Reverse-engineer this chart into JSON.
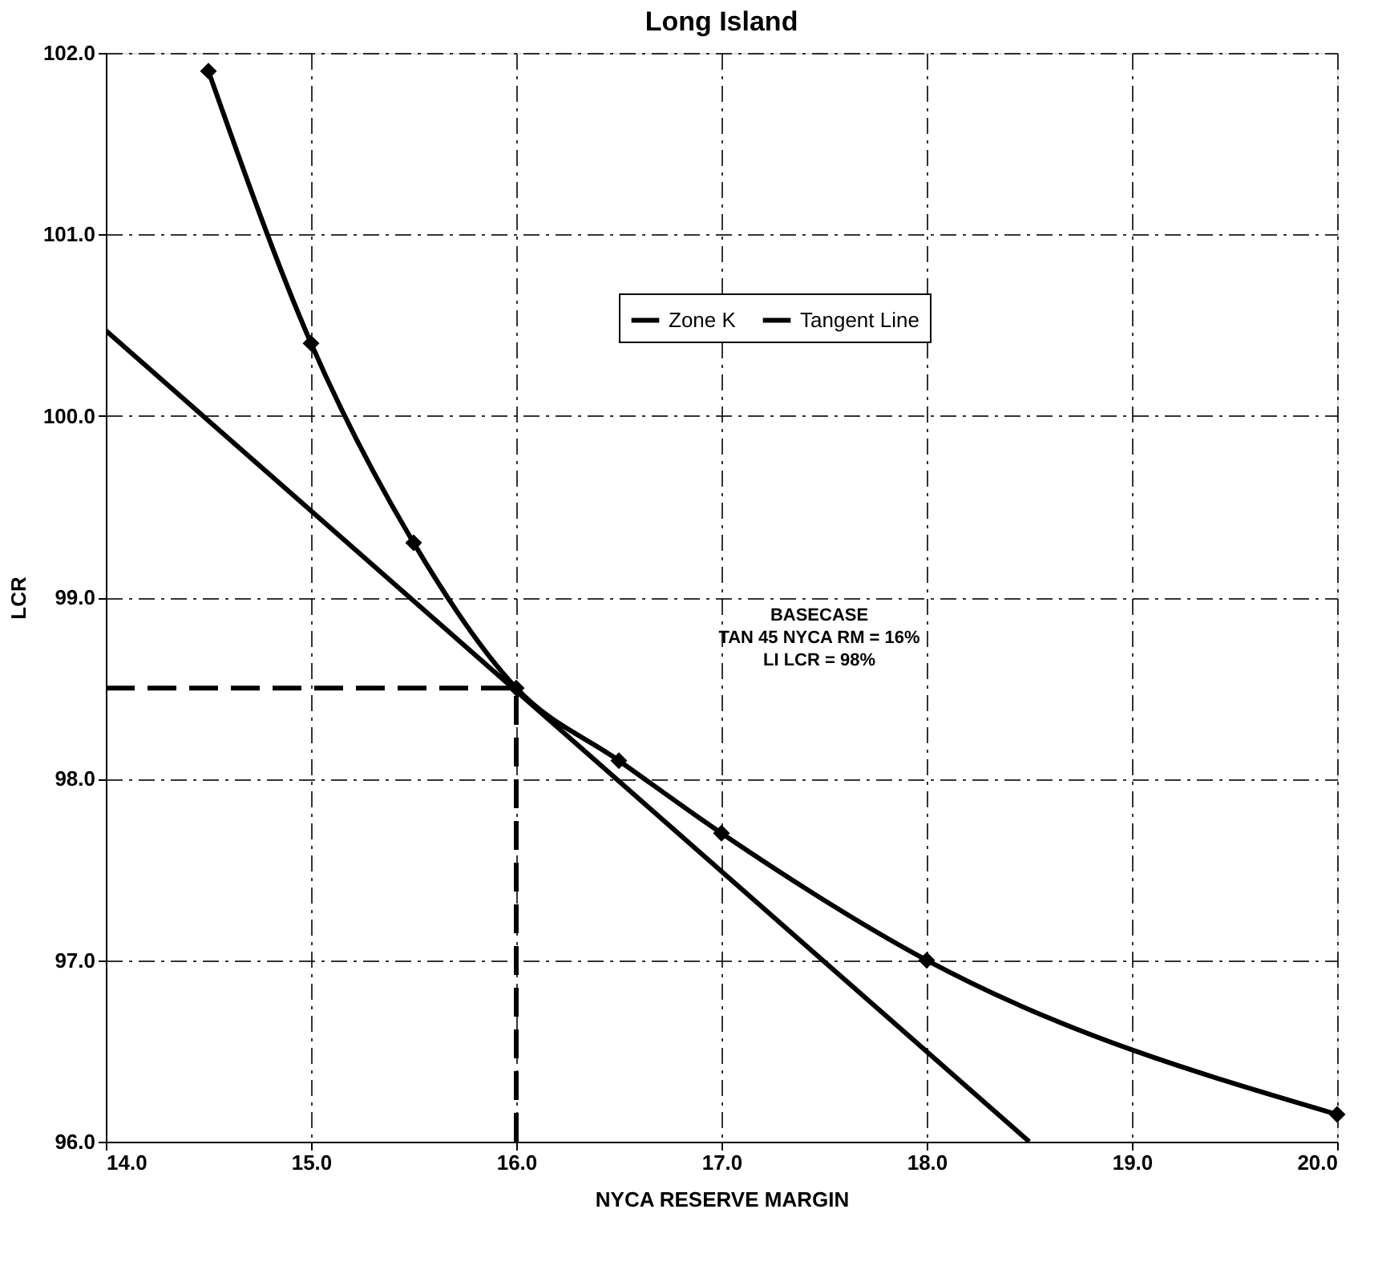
{
  "chart_data": {
    "type": "line",
    "title": "Long Island",
    "xlabel": "NYCA RESERVE MARGIN",
    "ylabel": "LCR",
    "x": [
      14.5,
      15,
      15.5,
      16,
      16.5,
      17,
      18,
      20
    ],
    "series": [
      {
        "name": "Zone K",
        "color": "#000000",
        "marker": "diamond",
        "values": [
          101.9,
          100.4,
          99.3,
          98.5,
          98.1,
          97.7,
          97.0,
          96.15
        ]
      },
      {
        "name": "Tangent Line",
        "color": "#000000",
        "marker": "none",
        "x": [
          14,
          18.5
        ],
        "values": [
          100.47,
          96.0
        ]
      }
    ],
    "xlim": [
      14,
      20
    ],
    "ylim": [
      96,
      102
    ],
    "xticks": [
      {
        "value": 14,
        "label": "14.0"
      },
      {
        "value": 15,
        "label": "15.0"
      },
      {
        "value": 16,
        "label": "16.0"
      },
      {
        "value": 17,
        "label": "17.0"
      },
      {
        "value": 18,
        "label": "18.0"
      },
      {
        "value": 19,
        "label": "19.0"
      },
      {
        "value": 20,
        "label": "20.0"
      }
    ],
    "yticks": [
      {
        "value": 96,
        "label": "96.0"
      },
      {
        "value": 97,
        "label": "97.0"
      },
      {
        "value": 98,
        "label": "98.0"
      },
      {
        "value": 99,
        "label": "99.0"
      },
      {
        "value": 100,
        "label": "100.0"
      },
      {
        "value": 101,
        "label": "101.0"
      },
      {
        "value": 102,
        "label": "102.0"
      }
    ],
    "ref_lines": [
      {
        "axis": "y",
        "value": 98.5,
        "line_style": "dashed"
      },
      {
        "axis": "x",
        "value": 16,
        "line_style": "dashed"
      }
    ],
    "annotations": [
      "BASECASE\nTAN 45 NYCA RM = 16%\nLI LCR = 98%"
    ],
    "grid": true,
    "legend": "top right",
    "line_style": "solid"
  }
}
